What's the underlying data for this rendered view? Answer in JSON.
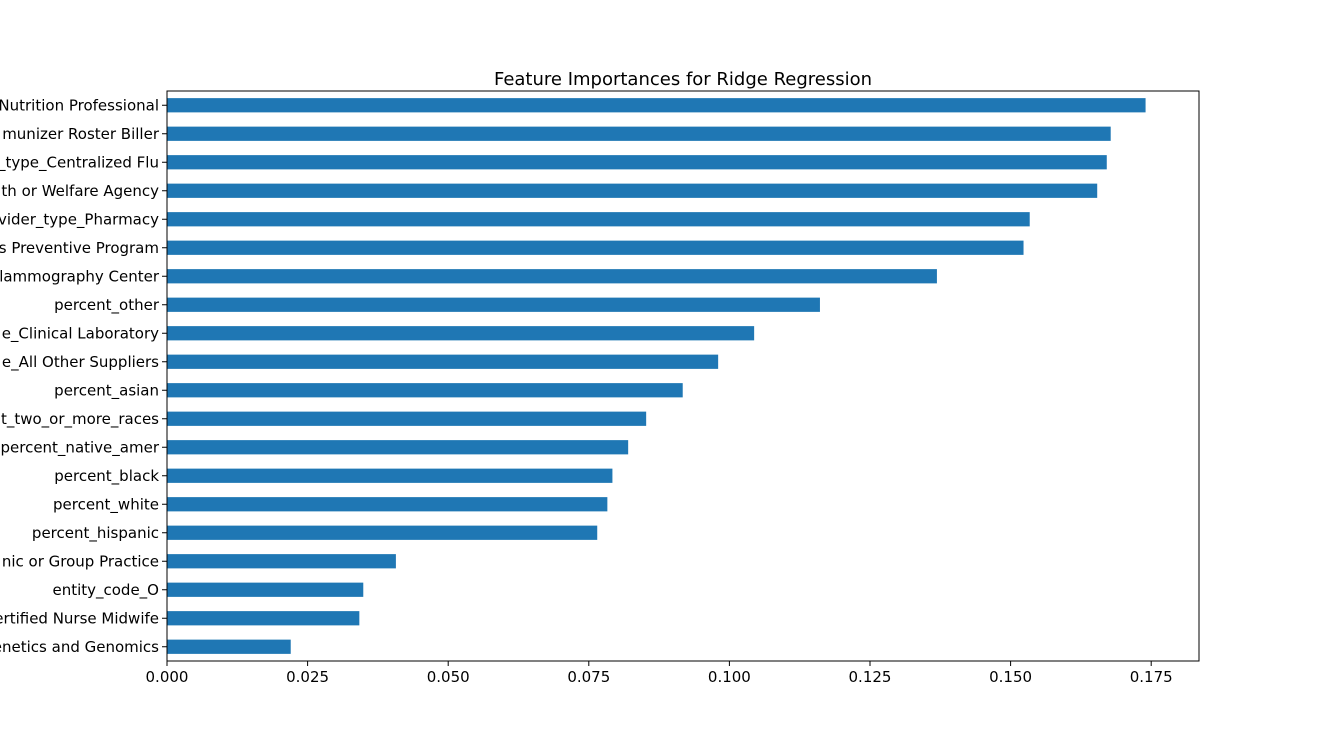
{
  "chart_data": {
    "type": "bar",
    "orientation": "horizontal",
    "title": "Feature Importances for Ridge Regression",
    "xlabel": "",
    "ylabel": "",
    "xlim": [
      0.0,
      0.1835
    ],
    "xticks": [
      0.0,
      0.025,
      0.05,
      0.075,
      0.1,
      0.125,
      0.15,
      0.175
    ],
    "xtick_labels": [
      "0.000",
      "0.025",
      "0.050",
      "0.075",
      "0.100",
      "0.125",
      "0.150",
      "0.175"
    ],
    "categories": [
      "Nutrition Professional",
      "munizer Roster Biller",
      "_type_Centralized Flu",
      "th or Welfare Agency",
      "vider_type_Pharmacy",
      "s Preventive Program",
      "lammography Center",
      "percent_other",
      "e_Clinical Laboratory",
      "e_All Other Suppliers",
      "percent_asian",
      "t_two_or_more_races",
      "percent_native_amer",
      "percent_black",
      "percent_white",
      "percent_hispanic",
      "nic or Group Practice",
      "entity_code_O",
      "ertified Nurse Midwife",
      "enetics and Genomics"
    ],
    "values": [
      0.174,
      0.1678,
      0.1671,
      0.1654,
      0.1534,
      0.1523,
      0.1369,
      0.1161,
      0.1044,
      0.098,
      0.0917,
      0.0852,
      0.082,
      0.0792,
      0.0783,
      0.0765,
      0.0407,
      0.0349,
      0.0342,
      0.022
    ],
    "bar_color": "#1f77b4",
    "grid": false,
    "legend": "none"
  }
}
